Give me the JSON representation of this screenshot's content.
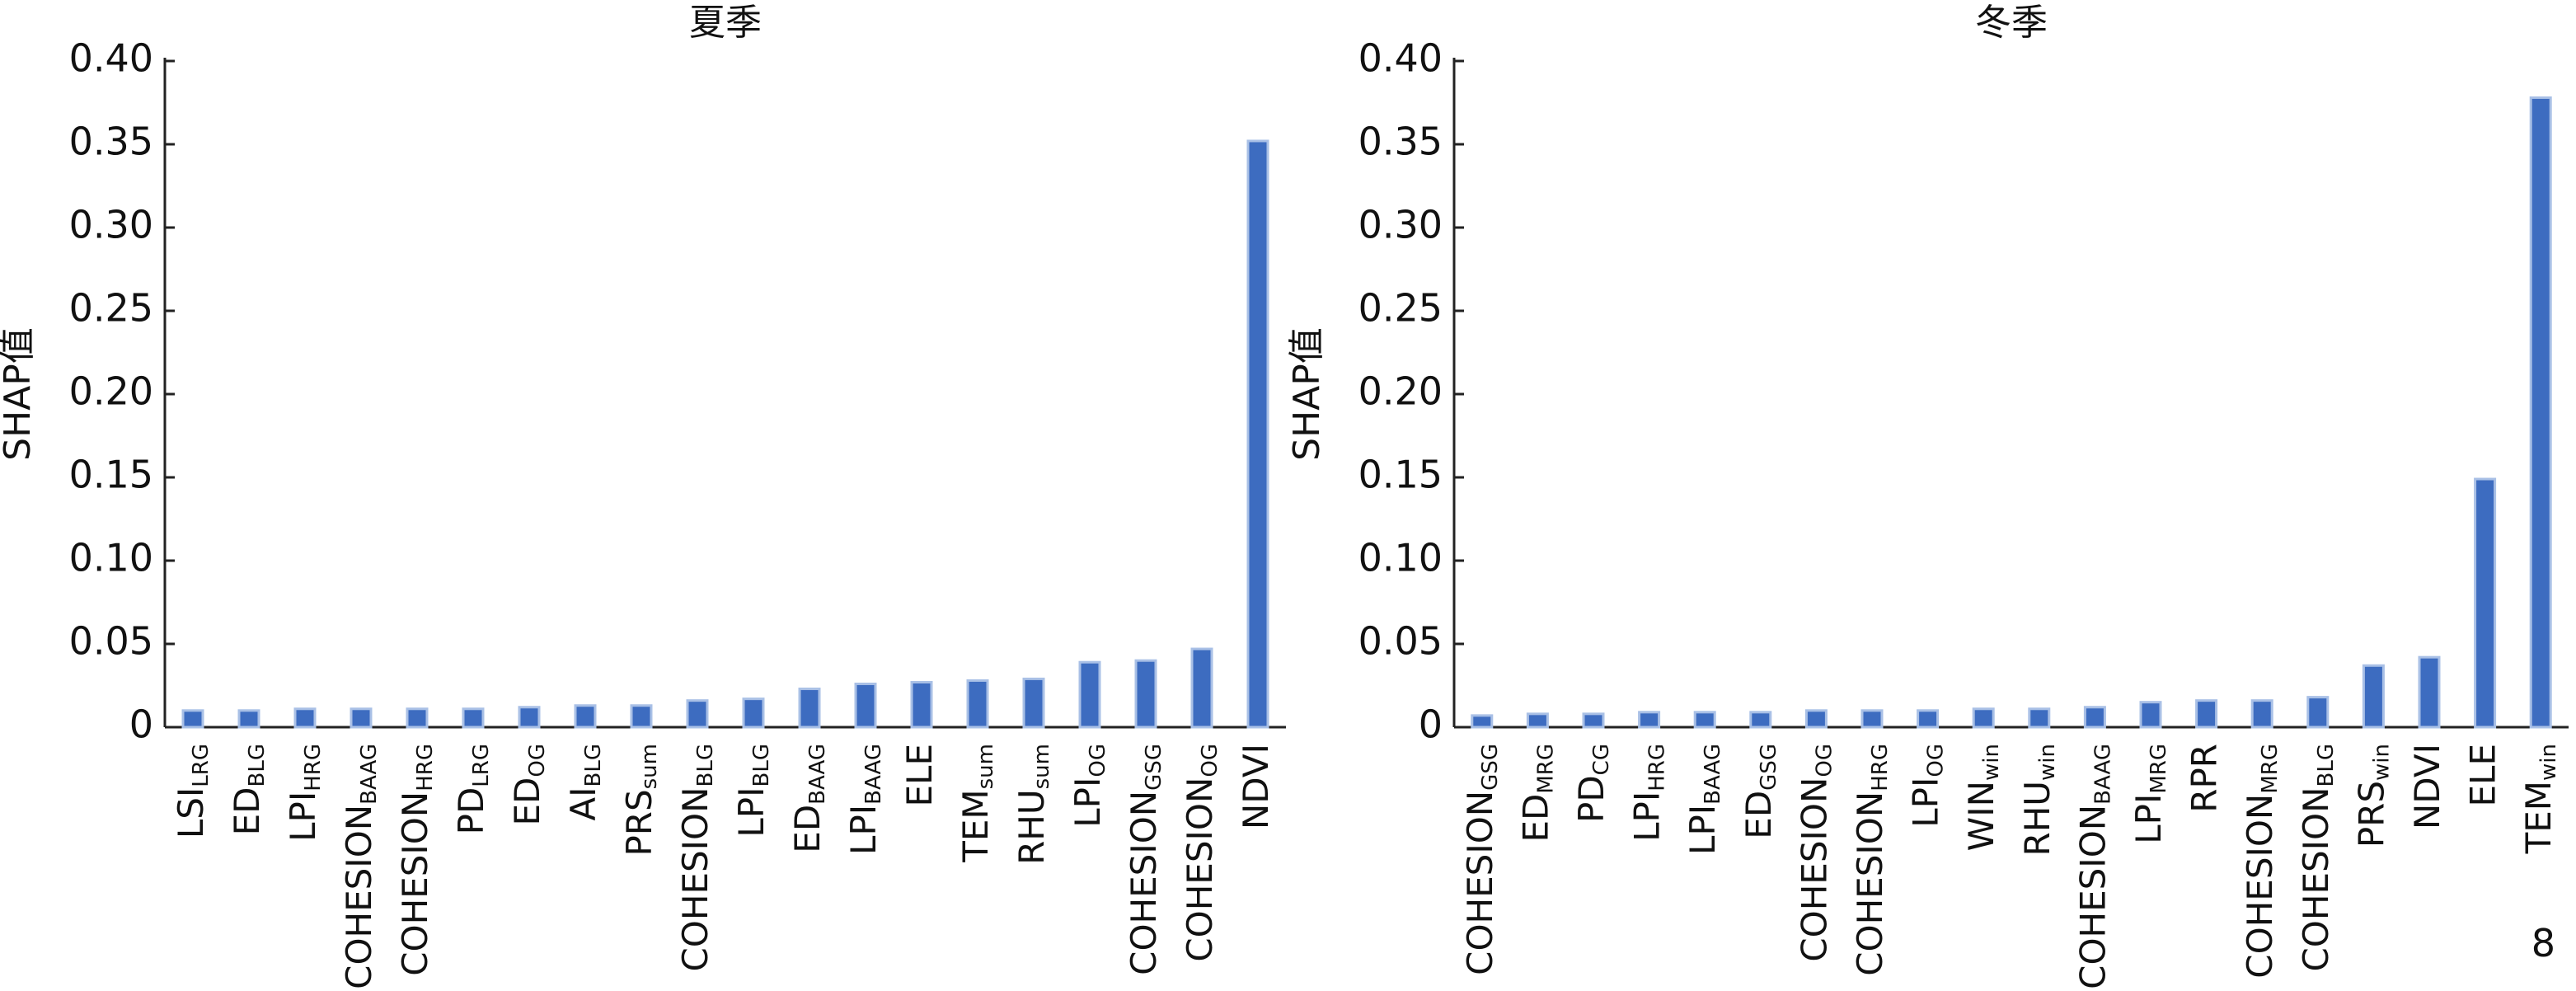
{
  "page_number": "8",
  "chart_data": [
    {
      "type": "bar",
      "title": "夏季",
      "y_label": "SHAP值",
      "color": "#3d6cc0",
      "categories": [
        {
          "text": "LSI",
          "sub": "LRG"
        },
        {
          "text": "ED",
          "sub": "BLG"
        },
        {
          "text": "LPI",
          "sub": "HRG"
        },
        {
          "text": "COHESION",
          "sub": "BAAG"
        },
        {
          "text": "COHESION",
          "sub": "HRG"
        },
        {
          "text": "PD",
          "sub": "LRG"
        },
        {
          "text": "ED",
          "sub": "OG"
        },
        {
          "text": "AI",
          "sub": "BLG"
        },
        {
          "text": "PRS",
          "sub": "sum"
        },
        {
          "text": "COHESION",
          "sub": "BLG"
        },
        {
          "text": "LPI",
          "sub": "BLG"
        },
        {
          "text": "ED",
          "sub": "BAAG"
        },
        {
          "text": "LPI",
          "sub": "BAAG"
        },
        {
          "text": "ELE"
        },
        {
          "text": "TEM",
          "sub": "sum"
        },
        {
          "text": "RHU",
          "sub": "sum"
        },
        {
          "text": "LPI",
          "sub": "OG"
        },
        {
          "text": "COHESION",
          "sub": "GSG"
        },
        {
          "text": "COHESION",
          "sub": "OG"
        },
        {
          "text": "NDVI"
        }
      ],
      "values": [
        0.01,
        0.01,
        0.011,
        0.011,
        0.011,
        0.011,
        0.012,
        0.013,
        0.013,
        0.016,
        0.017,
        0.023,
        0.026,
        0.027,
        0.028,
        0.029,
        0.039,
        0.04,
        0.047,
        0.352
      ],
      "ylim": [
        0,
        0.4
      ],
      "yticks": [
        0,
        0.05,
        {
          "value": 0.1,
          "label": "0.10"
        },
        0.15,
        {
          "value": 0.2,
          "label": "0.20"
        },
        0.25,
        {
          "value": 0.3,
          "label": "0.30"
        },
        0.35,
        {
          "value": 0.4,
          "label": "0.40"
        }
      ]
    },
    {
      "type": "bar",
      "title": "冬季",
      "y_label": "SHAP值",
      "color": "#3d6cc0",
      "categories": [
        {
          "text": "COHESION",
          "sub": "GSG"
        },
        {
          "text": "ED",
          "sub": "MRG"
        },
        {
          "text": "PD",
          "sub": "CG"
        },
        {
          "text": "LPI",
          "sub": "HRG"
        },
        {
          "text": "LPI",
          "sub": "BAAG"
        },
        {
          "text": "ED",
          "sub": "GSG"
        },
        {
          "text": "COHESION",
          "sub": "OG"
        },
        {
          "text": "COHESION",
          "sub": "HRG"
        },
        {
          "text": "LPI",
          "sub": "OG"
        },
        {
          "text": "WIN",
          "sub": "win"
        },
        {
          "text": "RHU",
          "sub": "win"
        },
        {
          "text": "COHESION",
          "sub": "BAAG"
        },
        {
          "text": "LPI",
          "sub": "MRG"
        },
        {
          "text": "RPR"
        },
        {
          "text": "COHESION",
          "sub": "MRG"
        },
        {
          "text": "COHESION",
          "sub": "BLG"
        },
        {
          "text": "PRS",
          "sub": "win"
        },
        {
          "text": "NDVI"
        },
        {
          "text": "ELE"
        },
        {
          "text": "TEM",
          "sub": "win"
        }
      ],
      "values": [
        0.007,
        0.008,
        0.008,
        0.009,
        0.009,
        0.009,
        0.01,
        0.01,
        0.01,
        0.011,
        0.011,
        0.012,
        0.015,
        0.016,
        0.016,
        0.018,
        0.037,
        0.042,
        0.149,
        0.378
      ],
      "ylim": [
        0,
        0.4
      ],
      "yticks": [
        0,
        0.05,
        {
          "value": 0.1,
          "label": "0.10"
        },
        0.15,
        {
          "value": 0.2,
          "label": "0.20"
        },
        0.25,
        {
          "value": 0.3,
          "label": "0.30"
        },
        0.35,
        {
          "value": 0.4,
          "label": "0.40"
        }
      ]
    }
  ]
}
